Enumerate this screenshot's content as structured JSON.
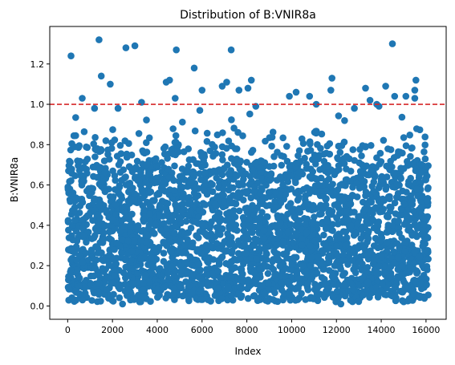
{
  "chart_data": {
    "type": "scatter",
    "title": "Distribution of B:VNIR8a",
    "xlabel": "Index",
    "ylabel": "B:VNIR8a",
    "xlim": [
      -800,
      16900
    ],
    "ylim": [
      -0.066,
      1.386
    ],
    "xticks": [
      0,
      2000,
      4000,
      6000,
      8000,
      10000,
      12000,
      14000,
      16000
    ],
    "xtick_labels": [
      "0",
      "2000",
      "4000",
      "6000",
      "8000",
      "10000",
      "12000",
      "14000",
      "16000"
    ],
    "yticks": [
      0.0,
      0.2,
      0.4,
      0.6,
      0.8,
      1.0,
      1.2
    ],
    "ytick_labels": [
      "0.0",
      "0.2",
      "0.4",
      "0.6",
      "0.8",
      "1.0",
      "1.2"
    ],
    "grid": false,
    "n_points_approx": 16100,
    "reference_line": {
      "y": 1.0,
      "color": "#d62728",
      "style": "dashed"
    },
    "point_color": "#1f77b4",
    "dense_band": {
      "x_range": [
        0,
        16100
      ],
      "y_range": [
        0.1,
        0.55
      ]
    },
    "notable_points": [
      {
        "x": 150,
        "y": 1.24
      },
      {
        "x": 1400,
        "y": 1.32
      },
      {
        "x": 1500,
        "y": 1.14
      },
      {
        "x": 1900,
        "y": 1.1
      },
      {
        "x": 2600,
        "y": 1.28
      },
      {
        "x": 3000,
        "y": 1.29
      },
      {
        "x": 4400,
        "y": 1.11
      },
      {
        "x": 4550,
        "y": 1.12
      },
      {
        "x": 4850,
        "y": 1.27
      },
      {
        "x": 5650,
        "y": 1.18
      },
      {
        "x": 6000,
        "y": 1.07
      },
      {
        "x": 6900,
        "y": 1.09
      },
      {
        "x": 7100,
        "y": 1.11
      },
      {
        "x": 7300,
        "y": 1.27
      },
      {
        "x": 7650,
        "y": 1.07
      },
      {
        "x": 8050,
        "y": 1.08
      },
      {
        "x": 8200,
        "y": 1.12
      },
      {
        "x": 9900,
        "y": 1.04
      },
      {
        "x": 10200,
        "y": 1.06
      },
      {
        "x": 10800,
        "y": 1.04
      },
      {
        "x": 11100,
        "y": 1.0
      },
      {
        "x": 11800,
        "y": 1.13
      },
      {
        "x": 11750,
        "y": 1.07
      },
      {
        "x": 13300,
        "y": 1.08
      },
      {
        "x": 13800,
        "y": 1.0
      },
      {
        "x": 14200,
        "y": 1.09
      },
      {
        "x": 14500,
        "y": 1.3
      },
      {
        "x": 14600,
        "y": 1.04
      },
      {
        "x": 15100,
        "y": 1.04
      },
      {
        "x": 15500,
        "y": 1.07
      },
      {
        "x": 15550,
        "y": 1.12
      },
      {
        "x": 15500,
        "y": 1.03
      },
      {
        "x": 650,
        "y": 1.03
      },
      {
        "x": 1200,
        "y": 0.98
      },
      {
        "x": 2250,
        "y": 0.98
      },
      {
        "x": 3300,
        "y": 1.01
      },
      {
        "x": 4800,
        "y": 1.03
      },
      {
        "x": 5900,
        "y": 0.97
      },
      {
        "x": 8400,
        "y": 0.99
      },
      {
        "x": 12800,
        "y": 0.98
      },
      {
        "x": 13500,
        "y": 1.02
      },
      {
        "x": 13900,
        "y": 0.99
      },
      {
        "x": 12200,
        "y": 0.01
      },
      {
        "x": 8500,
        "y": 0.03
      },
      {
        "x": 2450,
        "y": 0.01
      }
    ]
  }
}
